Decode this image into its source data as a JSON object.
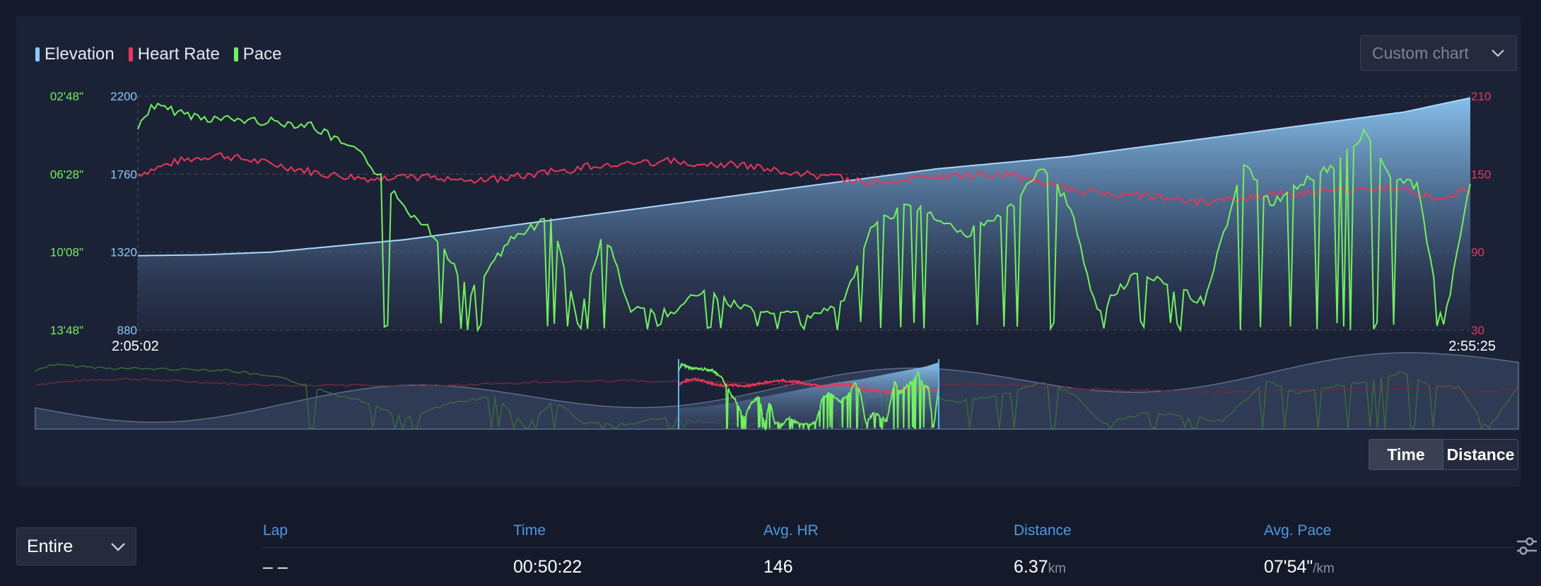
{
  "legend": [
    {
      "label": "Elevation",
      "color": "#8cc8f5"
    },
    {
      "label": "Heart Rate",
      "color": "#e8365c"
    },
    {
      "label": "Pace",
      "color": "#72f060"
    }
  ],
  "custom_chart": {
    "label": "Custom chart",
    "icon": "chevron-down-icon"
  },
  "chart_data": {
    "type": "line",
    "x_start": "2:05:02",
    "x_end": "2:55:25",
    "pace_axis_ticks": [
      "02'48\"",
      "06'28\"",
      "10'08\"",
      "13'48\""
    ],
    "elevation_axis_ticks": [
      "2200",
      "1760",
      "1320",
      "880"
    ],
    "hr_axis_ticks": [
      "210",
      "150",
      "90",
      "30"
    ],
    "elevation_range": [
      880,
      2200
    ],
    "hr_range": [
      30,
      210
    ],
    "grid": true,
    "series": [
      {
        "name": "Elevation",
        "color": "#8cc8f5",
        "x": [
          0,
          0.05,
          0.1,
          0.2,
          0.3,
          0.4,
          0.5,
          0.6,
          0.7,
          0.8,
          0.9,
          0.95,
          1
        ],
        "values": [
          1300,
          1305,
          1320,
          1390,
          1490,
          1590,
          1690,
          1790,
          1860,
          1960,
          2060,
          2110,
          2190
        ]
      },
      {
        "name": "Heart Rate",
        "color": "#e8365c",
        "x": [
          0,
          0.03,
          0.06,
          0.1,
          0.14,
          0.18,
          0.22,
          0.26,
          0.3,
          0.35,
          0.4,
          0.45,
          0.5,
          0.55,
          0.6,
          0.65,
          0.7,
          0.75,
          0.8,
          0.85,
          0.9,
          0.95,
          0.97,
          1
        ],
        "values": [
          150,
          160,
          165,
          158,
          150,
          146,
          148,
          145,
          150,
          158,
          160,
          157,
          150,
          144,
          148,
          150,
          138,
          134,
          128,
          134,
          137,
          140,
          132,
          138
        ]
      },
      {
        "name": "Pace",
        "color": "#72f060",
        "x": [
          0,
          0.01,
          0.05,
          0.1,
          0.13,
          0.17,
          0.2,
          0.22,
          0.25,
          0.28,
          0.31,
          0.33,
          0.35,
          0.37,
          0.4,
          0.42,
          0.45,
          0.5,
          0.53,
          0.55,
          0.58,
          0.62,
          0.65,
          0.68,
          0.7,
          0.72,
          0.75,
          0.8,
          0.83,
          0.85,
          0.88,
          0.9,
          0.92,
          0.94,
          0.96,
          0.98,
          1
        ],
        "values": [
          "04'20\"",
          "03'15\"",
          "03'50\"",
          "04'00\"",
          "04'10\"",
          "05'40\"",
          "08'00\"",
          "09'10\"",
          "12'00\"",
          "09'30\"",
          "08'30\"",
          "13'20\"",
          "09'10\"",
          "12'50\"",
          "13'00\"",
          "12'00\"",
          "12'40\"",
          "13'10\"",
          "12'30\"",
          "09'00\"",
          "07'50\"",
          "09'20\"",
          "08'20\"",
          "06'10\"",
          "08'00\"",
          "13'00\"",
          "11'00\"",
          "12'30\"",
          "06'00\"",
          "07'50\"",
          "06'40\"",
          "06'00\"",
          "04'30\"",
          "06'40\"",
          "07'00\"",
          "13'40\"",
          "06'50\""
        ]
      }
    ]
  },
  "toggle": {
    "time": "Time",
    "distance": "Distance"
  },
  "range_select": {
    "label": "Entire",
    "icon": "chevron-down-icon"
  },
  "laps": {
    "headers": [
      "Lap",
      "Time",
      "Avg. HR",
      "Distance",
      "Avg. Pace"
    ],
    "row": {
      "lap": "– –",
      "time": "00:50:22",
      "avg_hr": "146",
      "distance": "6.37",
      "distance_unit": "km",
      "avg_pace": "07'54\"",
      "pace_unit": "/km"
    }
  }
}
